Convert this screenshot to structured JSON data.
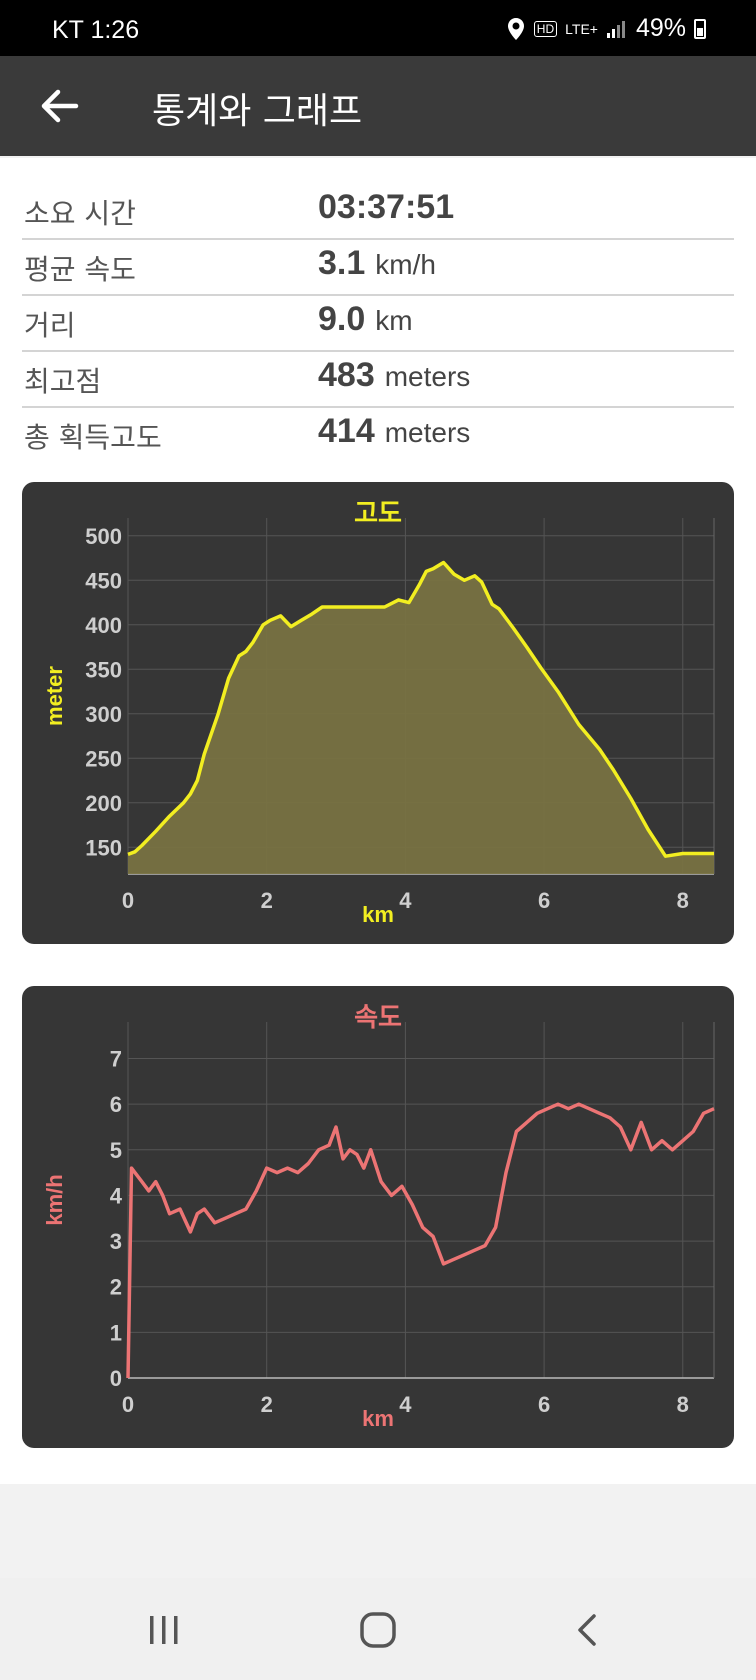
{
  "status_bar": {
    "carrier_time": "KT  1:26",
    "network": "LTE+",
    "battery": "49%"
  },
  "app_bar": {
    "title": "통계와 그래프"
  },
  "stats": [
    {
      "label": "소요 시간",
      "value": "03:37:51",
      "unit": ""
    },
    {
      "label": "평균 속도",
      "value": "3.1",
      "unit": "km/h"
    },
    {
      "label": "거리",
      "value": "9.0",
      "unit": "km"
    },
    {
      "label": "최고점",
      "value": "483",
      "unit": "meters"
    },
    {
      "label": "총 획득고도",
      "value": "414",
      "unit": "meters"
    }
  ],
  "colors": {
    "altitude": "#f2ee21",
    "speed": "#ec7474",
    "fill": "#7a7342",
    "card": "#363636"
  },
  "chart_data": [
    {
      "type": "area",
      "title": "고도",
      "xlabel": "km",
      "ylabel": "meter",
      "xlim": [
        0,
        8.45
      ],
      "ylim": [
        120,
        520
      ],
      "x_ticks": [
        0,
        2,
        4,
        6,
        8
      ],
      "y_ticks": [
        150,
        200,
        250,
        300,
        350,
        400,
        450,
        500
      ],
      "grid": true,
      "x": [
        0,
        0.1,
        0.2,
        0.4,
        0.6,
        0.8,
        0.9,
        1.0,
        1.1,
        1.3,
        1.45,
        1.6,
        1.7,
        1.8,
        1.95,
        2.05,
        2.2,
        2.35,
        2.5,
        2.65,
        2.8,
        2.95,
        3.1,
        3.3,
        3.5,
        3.7,
        3.9,
        4.05,
        4.2,
        4.3,
        4.4,
        4.55,
        4.7,
        4.85,
        5.0,
        5.1,
        5.25,
        5.35,
        5.55,
        5.75,
        5.95,
        6.2,
        6.5,
        6.8,
        7.0,
        7.25,
        7.5,
        7.75,
        8.0,
        8.2,
        8.3,
        8.45
      ],
      "y": [
        142,
        145,
        152,
        168,
        185,
        200,
        210,
        225,
        255,
        300,
        340,
        365,
        370,
        380,
        400,
        405,
        410,
        398,
        405,
        412,
        420,
        420,
        420,
        420,
        420,
        420,
        428,
        425,
        445,
        460,
        463,
        470,
        457,
        450,
        455,
        448,
        423,
        418,
        397,
        375,
        352,
        325,
        288,
        260,
        237,
        205,
        170,
        140,
        143,
        143,
        143,
        143
      ],
      "series": [
        {
          "values": [
            142,
            145,
            152,
            168,
            185,
            200,
            210,
            225,
            255,
            300,
            340,
            365,
            370,
            380,
            400,
            405,
            410,
            398,
            405,
            412,
            420,
            420,
            420,
            420,
            420,
            420,
            428,
            425,
            445,
            460,
            463,
            470,
            457,
            450,
            455,
            448,
            423,
            418,
            397,
            375,
            352,
            325,
            288,
            260,
            237,
            205,
            170,
            140,
            143,
            143,
            143,
            143
          ]
        }
      ]
    },
    {
      "type": "line",
      "title": "속도",
      "xlabel": "km",
      "ylabel": "km/h",
      "xlim": [
        0,
        8.45
      ],
      "ylim": [
        0,
        7.8
      ],
      "x_ticks": [
        0,
        2,
        4,
        6,
        8
      ],
      "y_ticks": [
        0,
        1,
        2,
        3,
        4,
        5,
        6,
        7
      ],
      "grid": true,
      "x": [
        0,
        0.05,
        0.1,
        0.2,
        0.3,
        0.4,
        0.5,
        0.6,
        0.75,
        0.9,
        1.0,
        1.1,
        1.25,
        1.4,
        1.55,
        1.7,
        1.85,
        2.0,
        2.15,
        2.3,
        2.45,
        2.6,
        2.75,
        2.9,
        3.0,
        3.1,
        3.2,
        3.3,
        3.4,
        3.5,
        3.65,
        3.8,
        3.95,
        4.1,
        4.25,
        4.4,
        4.55,
        4.7,
        4.85,
        5.0,
        5.15,
        5.3,
        5.45,
        5.6,
        5.75,
        5.9,
        6.05,
        6.2,
        6.35,
        6.5,
        6.65,
        6.8,
        6.95,
        7.1,
        7.25,
        7.4,
        7.55,
        7.7,
        7.85,
        8.0,
        8.15,
        8.3,
        8.45
      ],
      "y": [
        0,
        4.6,
        4.5,
        4.3,
        4.1,
        4.3,
        4.0,
        3.6,
        3.7,
        3.2,
        3.6,
        3.7,
        3.4,
        3.5,
        3.6,
        3.7,
        4.1,
        4.6,
        4.5,
        4.6,
        4.5,
        4.7,
        5.0,
        5.1,
        5.5,
        4.8,
        5.0,
        4.9,
        4.6,
        5.0,
        4.3,
        4.0,
        4.2,
        3.8,
        3.3,
        3.1,
        2.5,
        2.6,
        2.7,
        2.8,
        2.9,
        3.3,
        4.5,
        5.4,
        5.6,
        5.8,
        5.9,
        6.0,
        5.9,
        6.0,
        5.9,
        5.8,
        5.7,
        5.5,
        5.0,
        5.6,
        5.0,
        5.2,
        5.0,
        5.2,
        5.4,
        5.8,
        5.9
      ],
      "series": [
        {
          "values": [
            0,
            4.6,
            4.5,
            4.3,
            4.1,
            4.3,
            4.0,
            3.6,
            3.7,
            3.2,
            3.6,
            3.7,
            3.4,
            3.5,
            3.6,
            3.7,
            4.1,
            4.6,
            4.5,
            4.6,
            4.5,
            4.7,
            5.0,
            5.1,
            5.5,
            4.8,
            5.0,
            4.9,
            4.6,
            5.0,
            4.3,
            4.0,
            4.2,
            3.8,
            3.3,
            3.1,
            2.5,
            2.6,
            2.7,
            2.8,
            2.9,
            3.3,
            4.5,
            5.4,
            5.6,
            5.8,
            5.9,
            6.0,
            5.9,
            6.0,
            5.9,
            5.8,
            5.7,
            5.5,
            5.0,
            5.6,
            5.0,
            5.2,
            5.0,
            5.2,
            5.4,
            5.8,
            5.9
          ]
        }
      ]
    }
  ]
}
